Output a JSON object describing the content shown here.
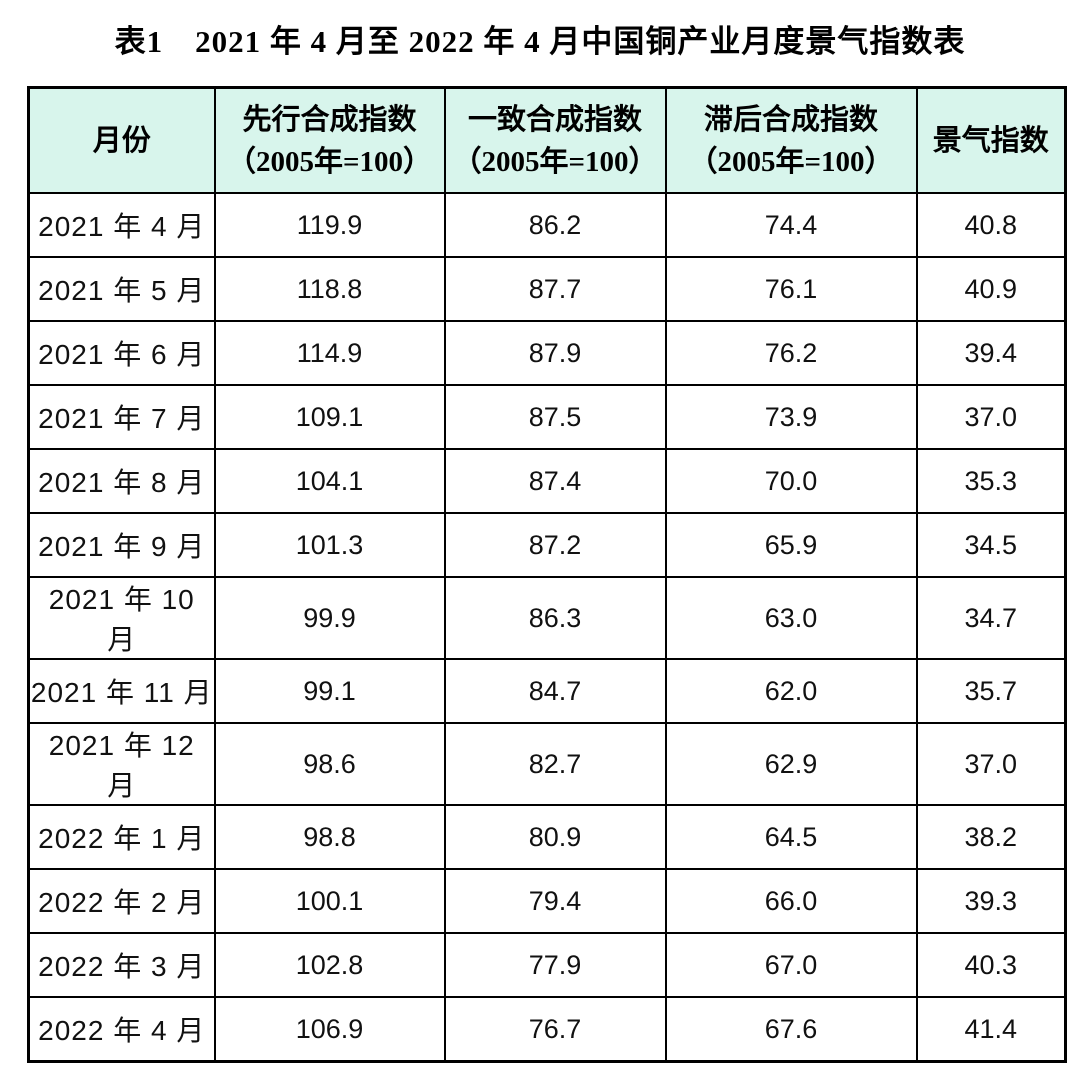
{
  "title": "表1　2021 年 4 月至 2022 年 4 月中国铜产业月度景气指数表",
  "colors": {
    "header_bg": "#d8f5ec",
    "border": "#000000",
    "text": "#000000",
    "page_bg": "#ffffff"
  },
  "table": {
    "columns": [
      {
        "label": "月份",
        "sub": ""
      },
      {
        "label": "先行合成指数",
        "sub": "（2005年=100）"
      },
      {
        "label": "一致合成指数",
        "sub": "（2005年=100）"
      },
      {
        "label": "滞后合成指数",
        "sub": "（2005年=100）"
      },
      {
        "label": "景气指数",
        "sub": ""
      }
    ],
    "rows": [
      {
        "month": "2021 年 4 月",
        "leading": "119.9",
        "coincident": "86.2",
        "lagging": "74.4",
        "prosperity": "40.8"
      },
      {
        "month": "2021 年 5 月",
        "leading": "118.8",
        "coincident": "87.7",
        "lagging": "76.1",
        "prosperity": "40.9"
      },
      {
        "month": "2021 年 6 月",
        "leading": "114.9",
        "coincident": "87.9",
        "lagging": "76.2",
        "prosperity": "39.4"
      },
      {
        "month": "2021 年 7 月",
        "leading": "109.1",
        "coincident": "87.5",
        "lagging": "73.9",
        "prosperity": "37.0"
      },
      {
        "month": "2021 年 8 月",
        "leading": "104.1",
        "coincident": "87.4",
        "lagging": "70.0",
        "prosperity": "35.3"
      },
      {
        "month": "2021 年 9 月",
        "leading": "101.3",
        "coincident": "87.2",
        "lagging": "65.9",
        "prosperity": "34.5"
      },
      {
        "month": "2021 年 10 月",
        "leading": "99.9",
        "coincident": "86.3",
        "lagging": "63.0",
        "prosperity": "34.7"
      },
      {
        "month": "2021 年 11 月",
        "leading": "99.1",
        "coincident": "84.7",
        "lagging": "62.0",
        "prosperity": "35.7"
      },
      {
        "month": "2021 年 12 月",
        "leading": "98.6",
        "coincident": "82.7",
        "lagging": "62.9",
        "prosperity": "37.0"
      },
      {
        "month": "2022 年 1 月",
        "leading": "98.8",
        "coincident": "80.9",
        "lagging": "64.5",
        "prosperity": "38.2"
      },
      {
        "month": "2022 年 2 月",
        "leading": "100.1",
        "coincident": "79.4",
        "lagging": "66.0",
        "prosperity": "39.3"
      },
      {
        "month": "2022 年 3 月",
        "leading": "102.8",
        "coincident": "77.9",
        "lagging": "67.0",
        "prosperity": "40.3"
      },
      {
        "month": "2022 年 4 月",
        "leading": "106.9",
        "coincident": "76.7",
        "lagging": "67.6",
        "prosperity": "41.4"
      }
    ]
  },
  "chart_data": {
    "type": "table",
    "title": "表1　2021年4月至2022年4月中国铜产业月度景气指数表",
    "columns": [
      "月份",
      "先行合成指数（2005年=100）",
      "一致合成指数（2005年=100）",
      "滞后合成指数（2005年=100）",
      "景气指数"
    ],
    "rows": [
      [
        "2021年4月",
        119.9,
        86.2,
        74.4,
        40.8
      ],
      [
        "2021年5月",
        118.8,
        87.7,
        76.1,
        40.9
      ],
      [
        "2021年6月",
        114.9,
        87.9,
        76.2,
        39.4
      ],
      [
        "2021年7月",
        109.1,
        87.5,
        73.9,
        37.0
      ],
      [
        "2021年8月",
        104.1,
        87.4,
        70.0,
        35.3
      ],
      [
        "2021年9月",
        101.3,
        87.2,
        65.9,
        34.5
      ],
      [
        "2021年10月",
        99.9,
        86.3,
        63.0,
        34.7
      ],
      [
        "2021年11月",
        99.1,
        84.7,
        62.0,
        35.7
      ],
      [
        "2021年12月",
        98.6,
        82.7,
        62.9,
        37.0
      ],
      [
        "2022年1月",
        98.8,
        80.9,
        64.5,
        38.2
      ],
      [
        "2022年2月",
        100.1,
        79.4,
        66.0,
        39.3
      ],
      [
        "2022年3月",
        102.8,
        77.9,
        67.0,
        40.3
      ],
      [
        "2022年4月",
        106.9,
        76.7,
        67.6,
        41.4
      ]
    ]
  }
}
